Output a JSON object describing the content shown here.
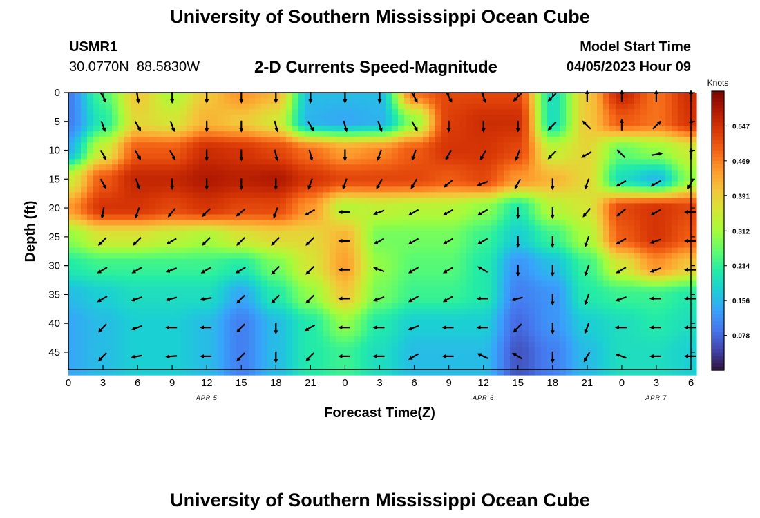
{
  "page_title": "University of Southern Mississippi Ocean Cube",
  "station_id": "USMR1",
  "station_coords": "30.0770N  88.5830W",
  "chart_title": "2-D Currents Speed-Magnitude",
  "model_start_label": "Model Start Time",
  "model_start_value": "04/05/2023 Hour 09",
  "footer_title": "University of Southern Mississippi Ocean Cube",
  "colors": {
    "colormap": [
      "#30123b",
      "#4145ab",
      "#4675ed",
      "#39a2fc",
      "#1bcfd4",
      "#24eca6",
      "#61fc6c",
      "#a4fc3b",
      "#d1e834",
      "#f3c63a",
      "#fe9b2d",
      "#f36315",
      "#d93806",
      "#b11901",
      "#7a0403"
    ]
  },
  "chart_data": {
    "type": "heatmap",
    "ylabel": "Depth (ft)",
    "xlabel": "Forecast Time(Z)",
    "x_tick_labels": [
      "0",
      "3",
      "6",
      "9",
      "12",
      "15",
      "18",
      "21",
      "0",
      "3",
      "6",
      "9",
      "12",
      "15",
      "18",
      "21",
      "0",
      "3",
      "6"
    ],
    "x_date_labels": [
      {
        "text": "APR 5",
        "tick_index": 4
      },
      {
        "text": "APR 6",
        "tick_index": 12
      },
      {
        "text": "APR 7",
        "tick_index": 17
      }
    ],
    "y_values": [
      0,
      5,
      10,
      15,
      20,
      25,
      30,
      35,
      40,
      45
    ],
    "ylim": [
      0,
      48
    ],
    "colorbar": {
      "label": "Knots",
      "ticks": [
        "0.547",
        "0.469",
        "0.391",
        "0.312",
        "0.234",
        "0.156",
        "0.078"
      ],
      "range": [
        0,
        0.625
      ]
    },
    "speed_grid": [
      [
        0.1,
        0.25,
        0.4,
        0.32,
        0.4,
        0.45,
        0.42,
        0.16,
        0.16,
        0.16,
        0.48,
        0.52,
        0.52,
        0.52,
        0.2,
        0.4,
        0.56,
        0.48,
        0.55
      ],
      [
        0.1,
        0.22,
        0.38,
        0.36,
        0.42,
        0.4,
        0.36,
        0.15,
        0.14,
        0.15,
        0.3,
        0.53,
        0.55,
        0.55,
        0.2,
        0.4,
        0.5,
        0.48,
        0.54
      ],
      [
        0.15,
        0.35,
        0.5,
        0.5,
        0.55,
        0.54,
        0.52,
        0.48,
        0.44,
        0.46,
        0.5,
        0.54,
        0.54,
        0.52,
        0.34,
        0.38,
        0.27,
        0.3,
        0.35
      ],
      [
        0.35,
        0.5,
        0.56,
        0.56,
        0.58,
        0.57,
        0.58,
        0.54,
        0.52,
        0.52,
        0.52,
        0.5,
        0.52,
        0.45,
        0.42,
        0.38,
        0.2,
        0.16,
        0.3
      ],
      [
        0.45,
        0.54,
        0.54,
        0.52,
        0.54,
        0.52,
        0.52,
        0.45,
        0.33,
        0.34,
        0.33,
        0.33,
        0.3,
        0.22,
        0.33,
        0.36,
        0.52,
        0.54,
        0.52
      ],
      [
        0.3,
        0.36,
        0.36,
        0.34,
        0.32,
        0.36,
        0.38,
        0.38,
        0.42,
        0.28,
        0.28,
        0.28,
        0.24,
        0.18,
        0.24,
        0.32,
        0.5,
        0.54,
        0.5
      ],
      [
        0.22,
        0.24,
        0.24,
        0.24,
        0.24,
        0.22,
        0.28,
        0.36,
        0.44,
        0.3,
        0.26,
        0.26,
        0.22,
        0.12,
        0.16,
        0.24,
        0.36,
        0.45,
        0.4
      ],
      [
        0.16,
        0.18,
        0.2,
        0.2,
        0.2,
        0.14,
        0.22,
        0.3,
        0.4,
        0.28,
        0.24,
        0.24,
        0.22,
        0.1,
        0.12,
        0.22,
        0.24,
        0.24,
        0.22
      ],
      [
        0.14,
        0.16,
        0.18,
        0.18,
        0.16,
        0.1,
        0.16,
        0.22,
        0.3,
        0.22,
        0.18,
        0.18,
        0.18,
        0.08,
        0.12,
        0.18,
        0.2,
        0.22,
        0.2
      ],
      [
        0.14,
        0.16,
        0.18,
        0.18,
        0.16,
        0.1,
        0.16,
        0.22,
        0.24,
        0.2,
        0.16,
        0.16,
        0.16,
        0.06,
        0.1,
        0.16,
        0.2,
        0.2,
        0.18
      ]
    ],
    "arrow_dirs_deg": [
      [
        135,
        150,
        170,
        180,
        180,
        180,
        180,
        180,
        180,
        180,
        150,
        150,
        160,
        225,
        225,
        0,
        0,
        0,
        0
      ],
      [
        150,
        160,
        150,
        160,
        180,
        180,
        165,
        150,
        165,
        160,
        150,
        180,
        180,
        180,
        225,
        315,
        0,
        45,
        0
      ],
      [
        160,
        150,
        150,
        150,
        180,
        180,
        165,
        165,
        180,
        200,
        200,
        210,
        210,
        200,
        225,
        240,
        315,
        80,
        0
      ],
      [
        170,
        150,
        160,
        180,
        180,
        180,
        180,
        200,
        200,
        210,
        210,
        230,
        250,
        210,
        180,
        200,
        240,
        240,
        210
      ],
      [
        200,
        190,
        200,
        220,
        225,
        230,
        200,
        240,
        270,
        250,
        240,
        240,
        240,
        180,
        180,
        220,
        230,
        240,
        270
      ],
      [
        225,
        225,
        225,
        240,
        225,
        225,
        225,
        225,
        270,
        240,
        240,
        240,
        240,
        180,
        180,
        200,
        240,
        250,
        270
      ],
      [
        225,
        240,
        240,
        250,
        240,
        240,
        225,
        225,
        270,
        290,
        240,
        240,
        300,
        180,
        180,
        200,
        240,
        250,
        270
      ],
      [
        240,
        240,
        250,
        255,
        260,
        225,
        225,
        225,
        270,
        250,
        240,
        240,
        270,
        255,
        180,
        200,
        250,
        270,
        270
      ],
      [
        230,
        225,
        250,
        270,
        270,
        225,
        180,
        240,
        270,
        270,
        250,
        270,
        270,
        225,
        180,
        200,
        270,
        270,
        270
      ],
      [
        225,
        225,
        260,
        265,
        270,
        225,
        180,
        225,
        270,
        270,
        240,
        270,
        295,
        300,
        180,
        210,
        290,
        270,
        270
      ]
    ]
  }
}
